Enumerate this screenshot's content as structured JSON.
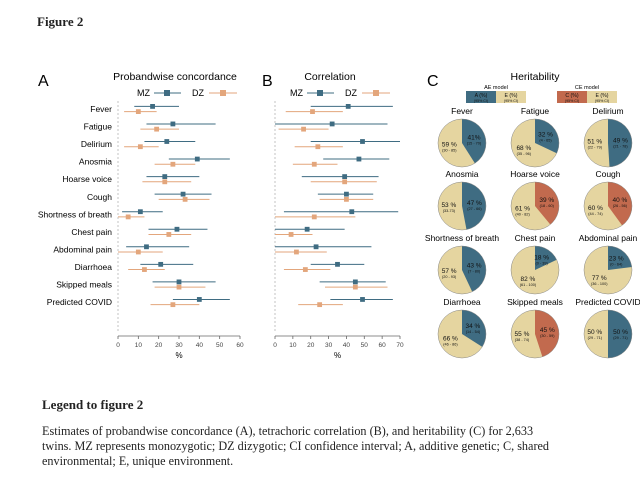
{
  "figure_title": "Figure 2",
  "legend_title": "Legend to figure 2",
  "legend_text": "Estimates of probandwise concordance (A), tetrachoric correlation (B), and heritability (C) for 2,633 twins. MZ represents monozygotic; DZ dizygotic; CI confidence interval; A, additive genetic; C, shared environmental; E, unique environment.",
  "colors": {
    "mz": "#3f6c82",
    "dz": "#e3a67c",
    "e": "#e5d5a0",
    "c": "#c26a4e"
  },
  "chart_data": [
    {
      "panel": "A",
      "type": "scatter",
      "title": "Probandwise concordance",
      "xlabel": "%",
      "xlim": [
        0,
        60
      ],
      "xticks": [
        0,
        10,
        20,
        30,
        40,
        50,
        60
      ],
      "legend": [
        "MZ",
        "DZ"
      ],
      "categories": [
        "Fever",
        "Fatigue",
        "Delirium",
        "Anosmia",
        "Hoarse voice",
        "Cough",
        "Shortness of breath",
        "Chest pain",
        "Abdominal pain",
        "Diarrhoea",
        "Skipped meals",
        "Predicted COVID"
      ],
      "series": [
        {
          "name": "MZ",
          "values": [
            17,
            27,
            24,
            39,
            23,
            32,
            11,
            29,
            14,
            21,
            30,
            40
          ],
          "ci": [
            [
              8,
              30
            ],
            [
              14,
              48
            ],
            [
              13,
              38
            ],
            [
              25,
              55
            ],
            [
              14,
              40
            ],
            [
              18,
              46
            ],
            [
              2,
              22
            ],
            [
              15,
              44
            ],
            [
              4,
              35
            ],
            [
              11,
              37
            ],
            [
              17,
              48
            ],
            [
              27,
              55
            ]
          ]
        },
        {
          "name": "DZ",
          "values": [
            10,
            19,
            11,
            27,
            23,
            33,
            5,
            25,
            10,
            13,
            30,
            27
          ],
          "ci": [
            [
              3,
              19
            ],
            [
              11,
              30
            ],
            [
              3,
              20
            ],
            [
              18,
              38
            ],
            [
              12,
              36
            ],
            [
              20,
              45
            ],
            [
              0,
              13
            ],
            [
              15,
              36
            ],
            [
              0,
              22
            ],
            [
              5,
              23
            ],
            [
              18,
              43
            ],
            [
              16,
              40
            ]
          ]
        }
      ]
    },
    {
      "panel": "B",
      "type": "scatter",
      "title": "Correlation",
      "xlabel": "%",
      "xlim": [
        0,
        70
      ],
      "xticks": [
        0,
        10,
        20,
        30,
        40,
        50,
        60,
        70
      ],
      "legend": [
        "MZ",
        "DZ"
      ],
      "categories": [
        "Fever",
        "Fatigue",
        "Delirium",
        "Anosmia",
        "Hoarse voice",
        "Cough",
        "Shortness of breath",
        "Chest pain",
        "Abdominal pain",
        "Diarrhoea",
        "Skipped meals",
        "Predicted COVID"
      ],
      "series": [
        {
          "name": "MZ",
          "values": [
            41,
            32,
            49,
            47,
            39,
            40,
            43,
            18,
            23,
            35,
            45,
            49
          ],
          "ci": [
            [
              20,
              66
            ],
            [
              0,
              63
            ],
            [
              20,
              70
            ],
            [
              27,
              64
            ],
            [
              15,
              58
            ],
            [
              24,
              55
            ],
            [
              5,
              69
            ],
            [
              0,
              39
            ],
            [
              -8,
              54
            ],
            [
              20,
              50
            ],
            [
              25,
              62
            ],
            [
              31,
              66
            ]
          ]
        },
        {
          "name": "DZ",
          "values": [
            21,
            16,
            24,
            22,
            39,
            40,
            22,
            9,
            12,
            17,
            45,
            25
          ],
          "ci": [
            [
              6,
              38
            ],
            [
              2,
              30
            ],
            [
              11,
              38
            ],
            [
              10,
              35
            ],
            [
              20,
              57
            ],
            [
              25,
              55
            ],
            [
              0,
              45
            ],
            [
              0,
              21
            ],
            [
              0,
              29
            ],
            [
              5,
              31
            ],
            [
              28,
              63
            ],
            [
              13,
              38
            ]
          ]
        }
      ]
    },
    {
      "panel": "C",
      "type": "pie",
      "title": "Heritability",
      "models": [
        {
          "label": "AE model",
          "components": [
            {
              "name": "A (%)",
              "sub": "(95% CI)",
              "color": "#3f6c82"
            },
            {
              "name": "E (%)",
              "sub": "(95% CI)",
              "color": "#e5d5a0"
            }
          ]
        },
        {
          "label": "CE model",
          "components": [
            {
              "name": "C (%)",
              "sub": "(95% CI)",
              "color": "#c26a4e"
            },
            {
              "name": "E (%)",
              "sub": "(95% CI)",
              "color": "#e5d5a0"
            }
          ]
        }
      ],
      "pies": [
        {
          "name": "Fever",
          "model": "AE",
          "share": 41,
          "share_label": "41%",
          "share_ci": "(15 - 70)",
          "rest_label": "59 %",
          "rest_ci": "(30 - 85)"
        },
        {
          "name": "Fatigue",
          "model": "AE",
          "share": 32,
          "share_label": "32 %",
          "share_ci": "(4 - 65)",
          "rest_label": "68 %",
          "rest_ci": "(35 - 96)"
        },
        {
          "name": "Delirium",
          "model": "AE",
          "share": 49,
          "share_label": "49 %",
          "share_ci": "(21 - 78)",
          "rest_label": "51 %",
          "rest_ci": "(22 - 79)"
        },
        {
          "name": "Anosmia",
          "model": "AE",
          "share": 47,
          "share_label": "47 %",
          "share_ci": "(27 - 66)",
          "rest_label": "53 %",
          "rest_ci": "(33-73)"
        },
        {
          "name": "Hoarse voice",
          "model": "CE",
          "share": 39,
          "share_label": "39 %",
          "share_ci": "(18 - 60)",
          "rest_label": "61 %",
          "rest_ci": "(40 - 82)"
        },
        {
          "name": "Cough",
          "model": "CE",
          "share": 40,
          "share_label": "40 %",
          "share_ci": "(26 - 56)",
          "rest_label": "60 %",
          "rest_ci": "(44 - 74)"
        },
        {
          "name": "Shortness of breath",
          "model": "AE",
          "share": 43,
          "share_label": "43 %",
          "share_ci": "(7 - 80)",
          "rest_label": "57 %",
          "rest_ci": "(20 - 93)"
        },
        {
          "name": "Chest pain",
          "model": "AE",
          "share": 18,
          "share_label": "18 %",
          "share_ci": "(0 - 39)",
          "rest_label": "82 %",
          "rest_ci": "(61 - 100)"
        },
        {
          "name": "Abdominal pain",
          "model": "AE",
          "share": 23,
          "share_label": "23 %",
          "share_ci": "(0 - 64)",
          "rest_label": "77 %",
          "rest_ci": "(36 - 100)"
        },
        {
          "name": "Diarrhoea",
          "model": "AE",
          "share": 34,
          "share_label": "34 %",
          "share_ci": "(14 - 54)",
          "rest_label": "66 %",
          "rest_ci": "(46 - 86)"
        },
        {
          "name": "Skipped meals",
          "model": "CE",
          "share": 45,
          "share_label": "45 %",
          "share_ci": "(30 - 59)",
          "rest_label": "55 %",
          "rest_ci": "(38 - 74)"
        },
        {
          "name": "Predicted COVID",
          "model": "AE",
          "share": 50,
          "share_label": "50 %",
          "share_ci": "(29 - 71)",
          "rest_label": "50 %",
          "rest_ci": "(29 - 71)"
        }
      ]
    }
  ]
}
